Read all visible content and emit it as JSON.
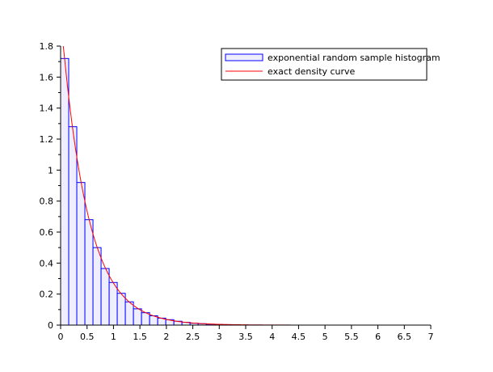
{
  "chart_data": {
    "type": "bar",
    "title": "",
    "xlabel": "",
    "ylabel": "",
    "xlim": [
      0,
      7
    ],
    "ylim": [
      0,
      1.8
    ],
    "x_ticks": [
      "0",
      "0.5",
      "1",
      "1.5",
      "2",
      "2.5",
      "3",
      "3.5",
      "4",
      "4.5",
      "5",
      "5.5",
      "6",
      "6.5",
      "7"
    ],
    "y_ticks": [
      "0",
      "0.2",
      "0.4",
      "0.6",
      "0.8",
      "1",
      "1.2",
      "1.4",
      "1.6",
      "1.8"
    ],
    "grid": false,
    "legend_position": "top-right",
    "series": [
      {
        "name": "exponential random sample histogram",
        "kind": "histogram",
        "bin_width": 0.153,
        "bin_start": 0,
        "values": [
          1.72,
          1.28,
          0.92,
          0.68,
          0.5,
          0.365,
          0.275,
          0.205,
          0.15,
          0.105,
          0.08,
          0.06,
          0.045,
          0.035,
          0.025,
          0.018,
          0.012,
          0.009,
          0.006,
          0.004,
          0.003,
          0.002
        ],
        "color": "#0000ff",
        "fill": "#eeeeff"
      },
      {
        "name": "exact density curve",
        "kind": "line",
        "function": "2*exp(-2x)",
        "rate": 2,
        "x_range": [
          0.05,
          6.2
        ],
        "color": "#ff0000"
      }
    ]
  }
}
